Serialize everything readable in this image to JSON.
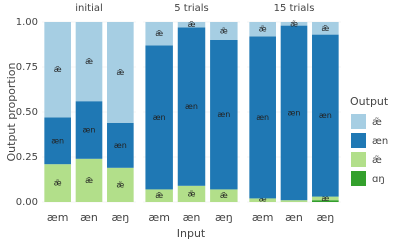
{
  "chart_data": [
    {
      "type": "stacked-bar",
      "title": "initial",
      "ylabel": "Output proportion",
      "xlabel": "Input",
      "legend_title": "Output",
      "categories": [
        "æm",
        "æn",
        "æŋ"
      ],
      "series": [
        {
          "name": "ɑŋ",
          "color": "#33a02c",
          "values": [
            0,
            0,
            0
          ]
        },
        {
          "name": "æ̃",
          "color": "#b2df8a",
          "values": [
            0.21,
            0.24,
            0.19
          ]
        },
        {
          "name": "æn",
          "color": "#1f78b4",
          "values": [
            0.26,
            0.32,
            0.25
          ]
        },
        {
          "name": "æ̃",
          "color": "#a6cee3",
          "values": [
            0.53,
            0.44,
            0.56
          ]
        }
      ],
      "ylim": [
        0,
        1
      ],
      "yticks": [
        {
          "value": 0,
          "label": "0.00"
        },
        {
          "value": 0.25,
          "label": "0.25"
        },
        {
          "value": 0.5,
          "label": "0.50"
        },
        {
          "value": 0.75,
          "label": "0.75"
        },
        {
          "value": 1,
          "label": "1.00"
        }
      ],
      "grid": true
    },
    {
      "type": "stacked-bar",
      "title": "5 trials",
      "categories": [
        "æm",
        "æn",
        "æŋ"
      ],
      "series": [
        {
          "name": "ɑŋ",
          "color": "#33a02c",
          "values": [
            0,
            0,
            0
          ]
        },
        {
          "name": "æ̃",
          "color": "#b2df8a",
          "values": [
            0.07,
            0.09,
            0.07
          ]
        },
        {
          "name": "æn",
          "color": "#1f78b4",
          "values": [
            0.8,
            0.88,
            0.83
          ]
        },
        {
          "name": "æ̃",
          "color": "#a6cee3",
          "values": [
            0.13,
            0.03,
            0.1
          ]
        }
      ],
      "ylim": [
        0,
        1
      ],
      "yticks": [
        0,
        0.25,
        0.5,
        0.75,
        1
      ],
      "grid": true
    },
    {
      "type": "stacked-bar",
      "title": "15 trials",
      "categories": [
        "æm",
        "æn",
        "æŋ"
      ],
      "series": [
        {
          "name": "ɑŋ",
          "color": "#33a02c",
          "values": [
            0,
            0,
            0.01
          ]
        },
        {
          "name": "æ̃",
          "color": "#b2df8a",
          "values": [
            0.02,
            0.01,
            0.02
          ]
        },
        {
          "name": "æn",
          "color": "#1f78b4",
          "values": [
            0.9,
            0.97,
            0.9
          ]
        },
        {
          "name": "æ̃",
          "color": "#a6cee3",
          "values": [
            0.08,
            0.02,
            0.07
          ]
        }
      ],
      "ylim": [
        0,
        1
      ],
      "yticks": [
        0,
        0.25,
        0.5,
        0.75,
        1
      ],
      "grid": true
    }
  ]
}
